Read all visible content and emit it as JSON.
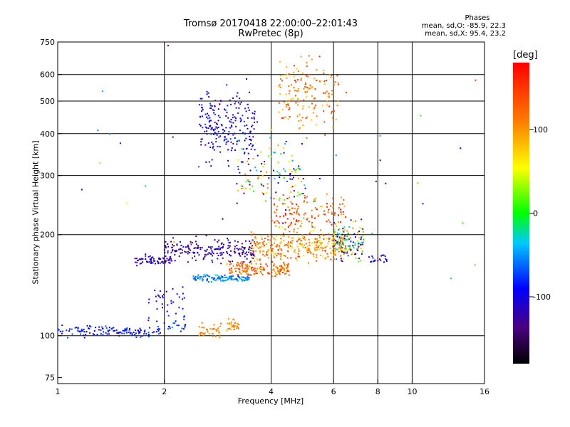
{
  "title_line1": "Tromsø 20170418 22:00:00–22:01:43",
  "title_line2": "RwPretec (8p)",
  "phase_info": {
    "header": "Phases",
    "line_o": "mean, sd,O: -85.9, 22.3",
    "line_x": "mean, sd,X: 95.4, 23.2"
  },
  "colorbar": {
    "title": "[deg]",
    "ticks": [
      "100",
      "0",
      "-100"
    ],
    "tick_values": [
      100,
      0,
      -100
    ],
    "range": [
      -180,
      180
    ]
  },
  "chart_data": {
    "type": "scatter",
    "xlabel": "Frequency [MHz]",
    "ylabel": "Stationary phase Virtual Height [km]",
    "xscale": "log",
    "yscale": "log",
    "xlim": [
      1,
      16
    ],
    "ylim": [
      72,
      750
    ],
    "xticks": [
      1,
      2,
      4,
      6,
      8,
      10,
      16
    ],
    "xtick_labels": [
      "1",
      "2",
      "4",
      "6",
      "8",
      "10",
      "16"
    ],
    "xgrid": [
      2,
      4,
      6,
      8,
      10
    ],
    "yticks": [
      75,
      100,
      200,
      300,
      400,
      500,
      600,
      750
    ],
    "ytick_labels": [
      "75",
      "100",
      "200",
      "300",
      "400",
      "500",
      "600",
      "750"
    ],
    "ygrid": [
      100,
      200,
      300,
      400,
      500,
      600
    ],
    "grid": true,
    "color_encoding": "phase [deg]",
    "clusters": [
      {
        "x_range": [
          1.0,
          1.95
        ],
        "y_center": 103,
        "spread": 0.025,
        "phase_range": [
          -120,
          -60
        ],
        "count": 130
      },
      {
        "x_range": [
          2.05,
          2.3
        ],
        "y_center": 108,
        "spread": 0.04,
        "phase_range": [
          -100,
          -40
        ],
        "count": 20
      },
      {
        "x_range": [
          2.5,
          2.9
        ],
        "y_center": 104,
        "spread": 0.03,
        "phase_range": [
          90,
          130
        ],
        "count": 35
      },
      {
        "x_range": [
          3.0,
          3.25
        ],
        "y_center": 107,
        "spread": 0.04,
        "phase_range": [
          80,
          140
        ],
        "count": 30
      },
      {
        "x_range": [
          1.65,
          2.1
        ],
        "y_center": 168,
        "spread": 0.02,
        "phase_range": [
          -140,
          -100
        ],
        "count": 70
      },
      {
        "x_range": [
          2.0,
          3.6
        ],
        "y_center": 180,
        "spread": 0.05,
        "phase_range": [
          -150,
          -100
        ],
        "count": 200
      },
      {
        "x_range": [
          2.4,
          3.5
        ],
        "y_center": 148,
        "spread": 0.015,
        "phase_range": [
          -80,
          -30
        ],
        "count": 110
      },
      {
        "x_range": [
          3.0,
          4.5
        ],
        "y_center": 158,
        "spread": 0.03,
        "phase_range": [
          80,
          160
        ],
        "count": 160
      },
      {
        "x_range": [
          3.5,
          6.5
        ],
        "y_center": 185,
        "spread": 0.06,
        "phase_range": [
          60,
          150
        ],
        "count": 300
      },
      {
        "x_range": [
          4.0,
          6.5
        ],
        "y_center": 230,
        "spread": 0.09,
        "phase_range": [
          80,
          180
        ],
        "count": 140
      },
      {
        "x_range": [
          6.0,
          7.3
        ],
        "y_center": 190,
        "spread": 0.08,
        "phase_range": [
          -160,
          140
        ],
        "count": 150
      },
      {
        "x_range": [
          7.5,
          8.5
        ],
        "y_center": 170,
        "spread": 0.02,
        "phase_range": [
          -120,
          -80
        ],
        "count": 20
      },
      {
        "x_range": [
          2.5,
          3.6
        ],
        "y_center": 420,
        "spread": 0.15,
        "phase_range": [
          -140,
          -70
        ],
        "count": 220
      },
      {
        "x_range": [
          4.2,
          6.2
        ],
        "y_center": 520,
        "spread": 0.15,
        "phase_range": [
          70,
          160
        ],
        "count": 160
      },
      {
        "x_range": [
          3.2,
          5.0
        ],
        "y_center": 300,
        "spread": 0.18,
        "phase_range": [
          -160,
          130
        ],
        "count": 120
      },
      {
        "x_range": [
          1.8,
          2.3
        ],
        "y_center": 125,
        "spread": 0.08,
        "phase_range": [
          -130,
          -80
        ],
        "count": 35
      },
      {
        "x_range": [
          1.0,
          16.0
        ],
        "y_center": 300,
        "spread": 0.5,
        "phase_range": [
          -160,
          160
        ],
        "count": 40
      }
    ]
  }
}
